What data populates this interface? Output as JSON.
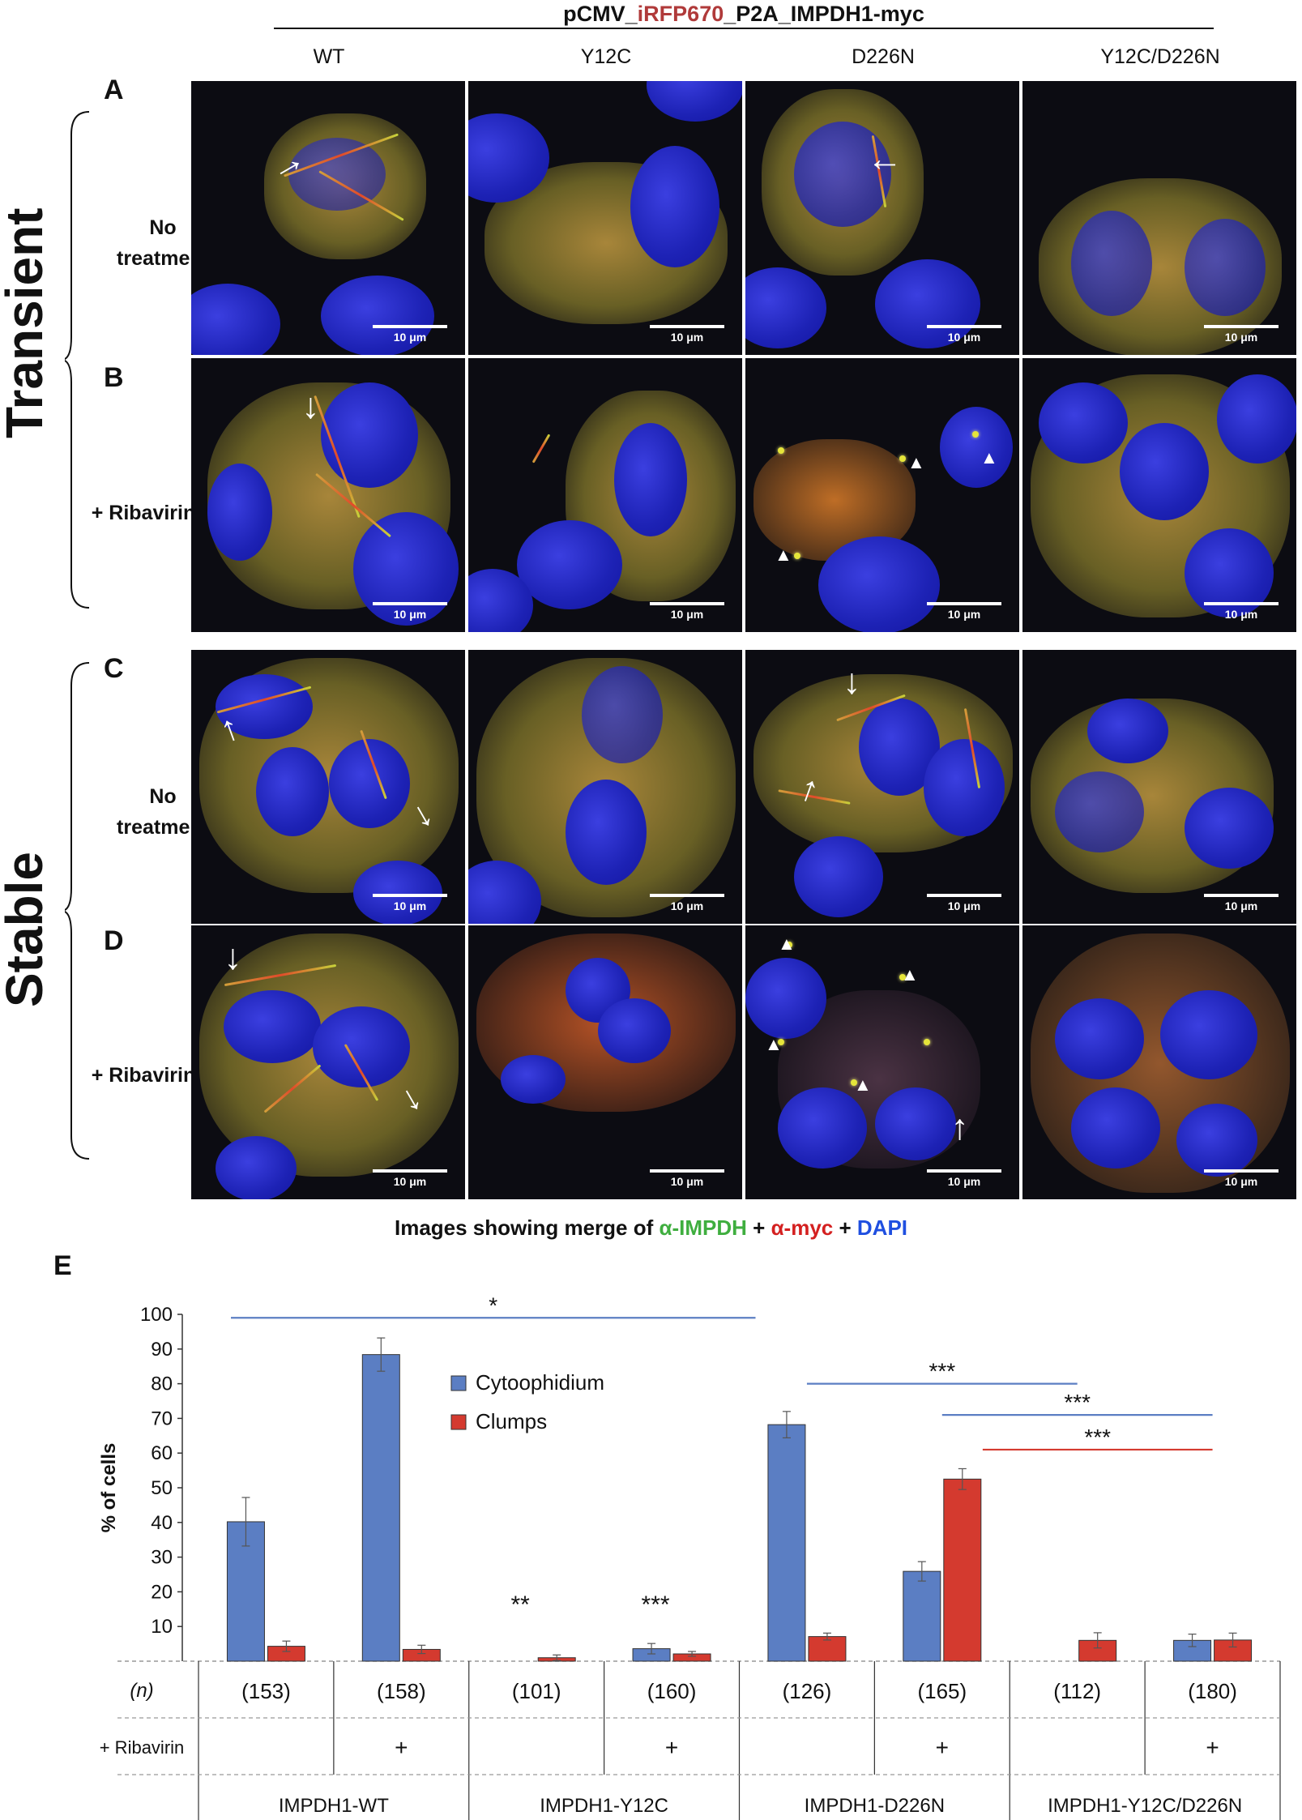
{
  "header": {
    "title_prefix": "pCMV_",
    "title_red": "iRFP670",
    "title_suffix": "_P2A_IMPDH1-myc"
  },
  "columns": [
    "WT",
    "Y12C",
    "D226N",
    "Y12C/D226N"
  ],
  "groups": {
    "transient": "Transient",
    "stable": "Stable"
  },
  "panels": {
    "A": "A",
    "B": "B",
    "C": "C",
    "D": "D",
    "E": "E"
  },
  "rows": {
    "no_treatment_1": "No",
    "no_treatment_2": "treatment",
    "ribavirin": "+ Ribavirin"
  },
  "scale_label": "10 μm",
  "caption": {
    "prefix": "Images showing merge of ",
    "green": "α-IMPDH",
    "plus1": " + ",
    "red": "α-myc",
    "plus2": " + ",
    "blue": "DAPI"
  },
  "chart_data": {
    "type": "bar",
    "ylabel": "% of cells",
    "ylim": [
      0,
      100
    ],
    "yticks": [
      10,
      20,
      30,
      40,
      50,
      60,
      70,
      80,
      90,
      100
    ],
    "series": [
      {
        "name": "Cytoophidium",
        "color": "#5b7ec3",
        "values": [
          40.2,
          88.4,
          0,
          3.6,
          68.2,
          25.9,
          0,
          6.0
        ],
        "errors": [
          7.0,
          4.8,
          0,
          1.5,
          3.8,
          2.8,
          0,
          1.8
        ]
      },
      {
        "name": "Clumps",
        "color": "#d43a2f",
        "values": [
          4.3,
          3.4,
          1.0,
          2.1,
          7.1,
          52.5,
          6.0,
          6.1
        ],
        "errors": [
          1.5,
          1.2,
          0.8,
          0.7,
          1.0,
          3.0,
          2.2,
          2.0
        ]
      }
    ],
    "n_row_label": "(n)",
    "n_values": [
      "(153)",
      "(158)",
      "(101)",
      "(160)",
      "(126)",
      "(165)",
      "(112)",
      "(180)"
    ],
    "ribavirin_row_label": "+ Ribavirin",
    "ribavirin_marks": [
      "",
      "+",
      "",
      "+",
      "",
      "+",
      "",
      "+"
    ],
    "groups": [
      "IMPDH1-WT",
      "IMPDH1-Y12C",
      "IMPDH1-D226N",
      "IMPDH1-Y12C/D226N"
    ],
    "significance": [
      {
        "label": "*",
        "color": "#5b7ec3",
        "from": 0,
        "to": 4
      },
      {
        "label": "***",
        "color": "#5b7ec3",
        "from": 4,
        "to": 6
      },
      {
        "label": "***",
        "color": "#5b7ec3",
        "from": 5,
        "to": 7
      },
      {
        "label": "***",
        "color": "#d43a2f",
        "from": 5,
        "to": 7
      }
    ],
    "bar_marks": [
      {
        "label": "**",
        "index": 2
      },
      {
        "label": "***",
        "index": 3
      }
    ]
  }
}
